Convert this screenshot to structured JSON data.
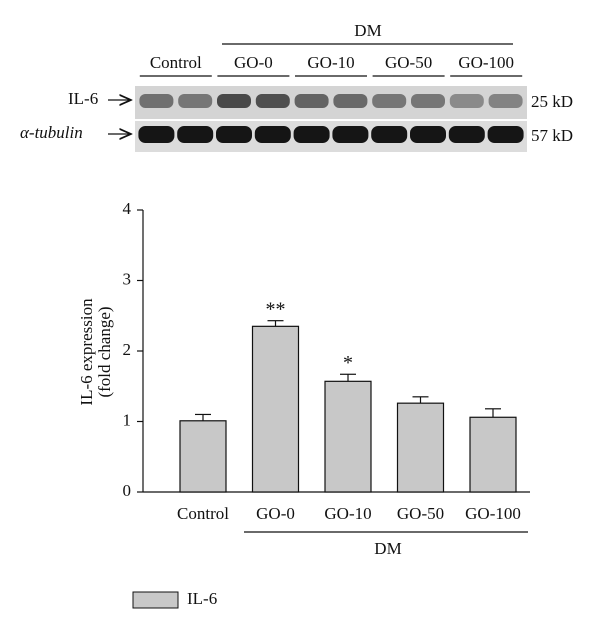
{
  "blot": {
    "group_label": "DM",
    "lanes": [
      "Control",
      "GO-0",
      "GO-10",
      "GO-50",
      "GO-100"
    ],
    "rows": [
      {
        "label": "IL-6",
        "size": "25 kD"
      },
      {
        "label": "α-tubulin",
        "size": "57 kD"
      }
    ]
  },
  "chart_data": {
    "type": "bar",
    "ylabel": [
      "IL-6 expression",
      "(fold change)"
    ],
    "categories": [
      "Control",
      "GO-0",
      "GO-10",
      "GO-50",
      "GO-100"
    ],
    "group_label": "DM",
    "series": [
      {
        "name": "IL-6",
        "color": "#c8c8c8",
        "values": [
          1.01,
          2.35,
          1.57,
          1.26,
          1.06
        ],
        "errors": [
          0.09,
          0.08,
          0.1,
          0.09,
          0.12
        ]
      }
    ],
    "significance": [
      null,
      "**",
      "*",
      null,
      null
    ],
    "ylim": [
      0,
      4
    ],
    "yticks": [
      0,
      1,
      2,
      3,
      4
    ]
  }
}
